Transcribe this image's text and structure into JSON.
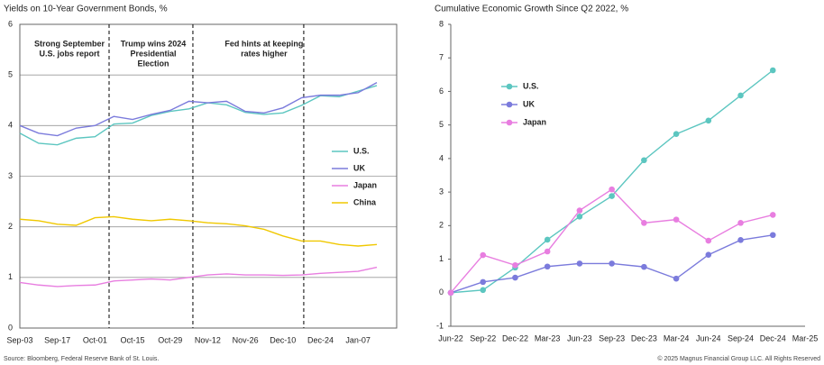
{
  "charts": [
    {
      "type": "line",
      "title": "Yields on 10-Year Government Bonds, %",
      "categories": [
        "Sep-03",
        null,
        "Sep-17",
        null,
        "Oct-01",
        null,
        "Oct-15",
        null,
        "Oct-29",
        null,
        "Nov-12",
        null,
        "Nov-26",
        null,
        "Dec-10",
        null,
        "Dec-24",
        null,
        "Jan-07",
        null
      ],
      "series": [
        {
          "name": "U.S.",
          "color": "#5cc6c0",
          "values": [
            3.85,
            3.65,
            3.62,
            3.75,
            3.78,
            4.03,
            4.05,
            4.2,
            4.28,
            4.33,
            4.45,
            4.41,
            4.26,
            4.22,
            4.25,
            4.4,
            4.59,
            4.57,
            4.68,
            4.79
          ]
        },
        {
          "name": "UK",
          "color": "#7b7bdc",
          "values": [
            4.0,
            3.85,
            3.8,
            3.95,
            4.0,
            4.18,
            4.12,
            4.22,
            4.3,
            4.48,
            4.45,
            4.48,
            4.28,
            4.25,
            4.35,
            4.55,
            4.6,
            4.6,
            4.65,
            4.85
          ]
        },
        {
          "name": "Japan",
          "color": "#e87ee0",
          "values": [
            0.9,
            0.85,
            0.82,
            0.84,
            0.85,
            0.93,
            0.95,
            0.97,
            0.95,
            1.0,
            1.05,
            1.07,
            1.05,
            1.05,
            1.04,
            1.05,
            1.08,
            1.1,
            1.12,
            1.2
          ]
        },
        {
          "name": "China",
          "color": "#f0c800",
          "values": [
            2.15,
            2.12,
            2.05,
            2.03,
            2.18,
            2.2,
            2.15,
            2.12,
            2.15,
            2.12,
            2.08,
            2.06,
            2.02,
            1.95,
            1.82,
            1.72,
            1.72,
            1.65,
            1.62,
            1.65
          ]
        }
      ],
      "ylim": [
        0,
        6
      ],
      "yticks": [
        0,
        1,
        2,
        3,
        4,
        5,
        6
      ],
      "grid": true,
      "markers": false,
      "legend": "right",
      "annotations": [
        {
          "x": 4.75,
          "text": [
            "Strong September",
            "U.S. jobs report"
          ]
        },
        {
          "x": 9.21,
          "text": [
            "Trump wins 2024",
            "Presidential",
            "Election"
          ]
        },
        {
          "x": 15.11,
          "text": [
            "Fed hints at keeping",
            "rates higher"
          ]
        }
      ]
    },
    {
      "type": "line",
      "title": "Cumulative Economic Growth Since Q2 2022, %",
      "categories": [
        "Jun-22",
        "Sep-22",
        "Dec-22",
        "Mar-23",
        "Jun-23",
        "Sep-23",
        "Dec-23",
        "Mar-24",
        "Jun-24",
        "Sep-24",
        "Dec-24",
        "Mar-25"
      ],
      "series": [
        {
          "name": "U.S.",
          "color": "#5cc6c0",
          "values": [
            0,
            0.08,
            0.75,
            1.58,
            2.27,
            2.88,
            3.95,
            4.73,
            5.13,
            5.88,
            6.63,
            null
          ]
        },
        {
          "name": "UK",
          "color": "#7b7bdc",
          "values": [
            0,
            0.32,
            0.45,
            0.78,
            0.87,
            0.87,
            0.77,
            0.42,
            1.13,
            1.57,
            1.72,
            null
          ]
        },
        {
          "name": "Japan",
          "color": "#e87ee0",
          "values": [
            0,
            1.12,
            0.82,
            1.23,
            2.45,
            3.08,
            2.08,
            2.18,
            1.55,
            2.08,
            2.32,
            null
          ]
        }
      ],
      "ylim": [
        -1,
        8
      ],
      "yticks": [
        -1,
        0,
        1,
        2,
        3,
        4,
        5,
        6,
        7,
        8
      ],
      "grid": false,
      "markers": true,
      "legend": "upper left"
    }
  ],
  "footer": {
    "source": "Source: Bloomberg, Federal Reserve Bank of St. Louis.",
    "copyright": "© 2025 Magnus Financial Group LLC. All Rights Reserved"
  }
}
